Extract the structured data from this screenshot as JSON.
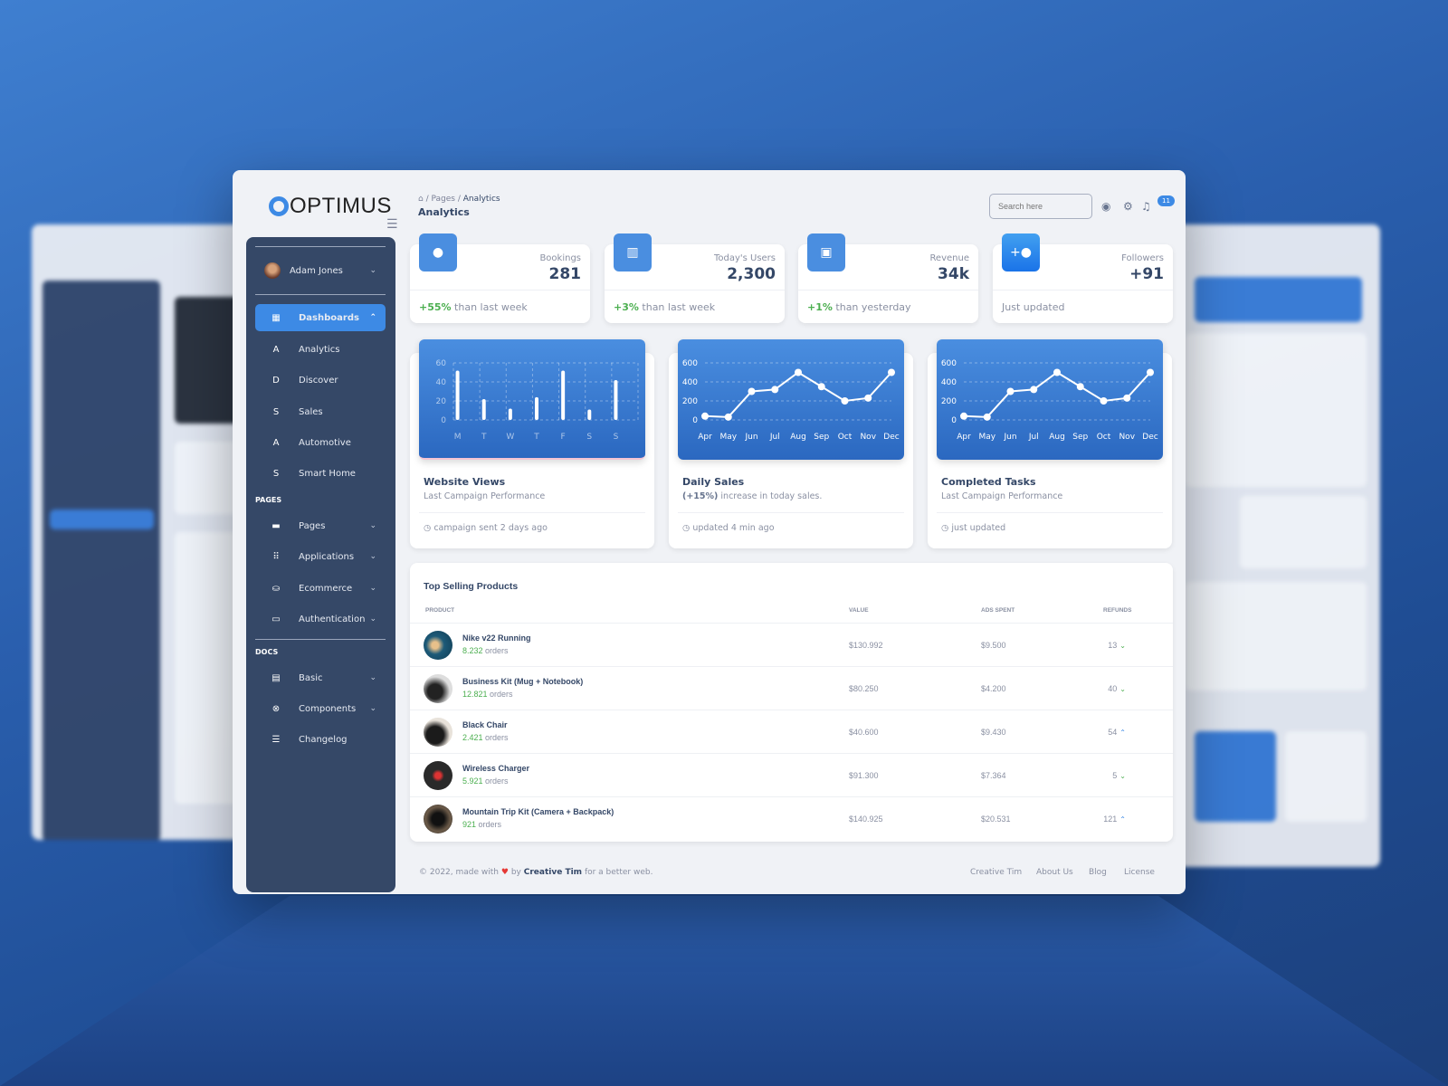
{
  "app": {
    "logo": "OPTIMUS"
  },
  "breadcrumb": {
    "items": [
      "Pages",
      "Analytics"
    ],
    "title": "Analytics"
  },
  "topbar": {
    "search_placeholder": "Search here",
    "notification_count": "11"
  },
  "sidebar": {
    "user": "Adam Jones",
    "dashboards": {
      "label": "Dashboards",
      "children": [
        {
          "letter": "A",
          "label": "Analytics"
        },
        {
          "letter": "D",
          "label": "Discover"
        },
        {
          "letter": "S",
          "label": "Sales"
        },
        {
          "letter": "A",
          "label": "Automotive"
        },
        {
          "letter": "S",
          "label": "Smart Home"
        }
      ]
    },
    "pages_heading": "PAGES",
    "pages": [
      {
        "icon": "image-icon",
        "label": "Pages"
      },
      {
        "icon": "apps-icon",
        "label": "Applications"
      },
      {
        "icon": "basket-icon",
        "label": "Ecommerce"
      },
      {
        "icon": "clipboard-icon",
        "label": "Authentication"
      }
    ],
    "docs_heading": "DOCS",
    "docs": [
      {
        "icon": "document-icon",
        "label": "Basic"
      },
      {
        "icon": "components-icon",
        "label": "Components"
      },
      {
        "icon": "list-icon",
        "label": "Changelog"
      }
    ]
  },
  "stats": [
    {
      "icon": "account-icon",
      "label": "Bookings",
      "value": "281",
      "change": "+55%",
      "note": "than last week"
    },
    {
      "icon": "bar-chart-icon",
      "label": "Today's Users",
      "value": "2,300",
      "change": "+3%",
      "note": "than last week"
    },
    {
      "icon": "store-icon",
      "label": "Revenue",
      "value": "34k",
      "change": "+1%",
      "note": "than yesterday"
    },
    {
      "icon": "person-add-icon",
      "label": "Followers",
      "value": "+91",
      "change": "",
      "note": "Just updated"
    }
  ],
  "charts": [
    {
      "title": "Website Views",
      "subtitle": "Last Campaign Performance",
      "footer": "campaign sent 2 days ago"
    },
    {
      "title": "Daily Sales",
      "subtitle_bold": "(+15%)",
      "subtitle": " increase in today sales.",
      "footer": "updated 4 min ago"
    },
    {
      "title": "Completed Tasks",
      "subtitle": "Last Campaign Performance",
      "footer": "just updated"
    }
  ],
  "chart_data": [
    {
      "type": "bar",
      "categories": [
        "M",
        "T",
        "W",
        "T",
        "F",
        "S",
        "S"
      ],
      "values": [
        50,
        20,
        10,
        22,
        50,
        9,
        40
      ],
      "ylim": [
        0,
        60
      ],
      "yticks": [
        "0",
        "20",
        "40",
        "60"
      ],
      "grid": true
    },
    {
      "type": "line",
      "categories": [
        "Apr",
        "May",
        "Jun",
        "Jul",
        "Aug",
        "Sep",
        "Oct",
        "Nov",
        "Dec"
      ],
      "values": [
        40,
        30,
        300,
        320,
        500,
        350,
        200,
        230,
        500
      ],
      "ylim": [
        0,
        600
      ],
      "yticks": [
        "0",
        "200",
        "400",
        "600"
      ],
      "grid": true
    },
    {
      "type": "line",
      "categories": [
        "Apr",
        "May",
        "Jun",
        "Jul",
        "Aug",
        "Sep",
        "Oct",
        "Nov",
        "Dec"
      ],
      "values": [
        40,
        30,
        300,
        320,
        500,
        350,
        200,
        230,
        500
      ],
      "ylim": [
        0,
        600
      ],
      "yticks": [
        "0",
        "200",
        "400",
        "600"
      ],
      "grid": true
    }
  ],
  "products": {
    "title": "Top  Selling Products",
    "columns": [
      "PRODUCT",
      "VALUE",
      "ADS SPENT",
      "REFUNDS"
    ],
    "rows": [
      {
        "name": "Nike v22 Running",
        "orders": "8.232",
        "orders_label": "orders",
        "value": "$130.992",
        "ads": "$9.500",
        "refunds": "13",
        "trend": "down"
      },
      {
        "name": "Business Kit (Mug + Notebook)",
        "orders": "12.821",
        "orders_label": "orders",
        "value": "$80.250",
        "ads": "$4.200",
        "refunds": "40",
        "trend": "down"
      },
      {
        "name": "Black Chair",
        "orders": "2.421",
        "orders_label": "orders",
        "value": "$40.600",
        "ads": "$9.430",
        "refunds": "54",
        "trend": "up"
      },
      {
        "name": "Wireless Charger",
        "orders": "5.921",
        "orders_label": "orders",
        "value": "$91.300",
        "ads": "$7.364",
        "refunds": "5",
        "trend": "down"
      },
      {
        "name": "Mountain Trip Kit (Camera + Backpack)",
        "orders": "921",
        "orders_label": "orders",
        "value": "$140.925",
        "ads": "$20.531",
        "refunds": "121",
        "trend": "up"
      }
    ]
  },
  "footer": {
    "copyright": "© 2022, made with",
    "by": "by",
    "author": "Creative Tim",
    "tail": "for a better web.",
    "links": [
      "Creative Tim",
      "About Us",
      "Blog",
      "License"
    ]
  },
  "colors": {
    "accent": "#3d8ae5",
    "sidebar": "#354867",
    "positive": "#4caf50",
    "heading": "#344767"
  }
}
